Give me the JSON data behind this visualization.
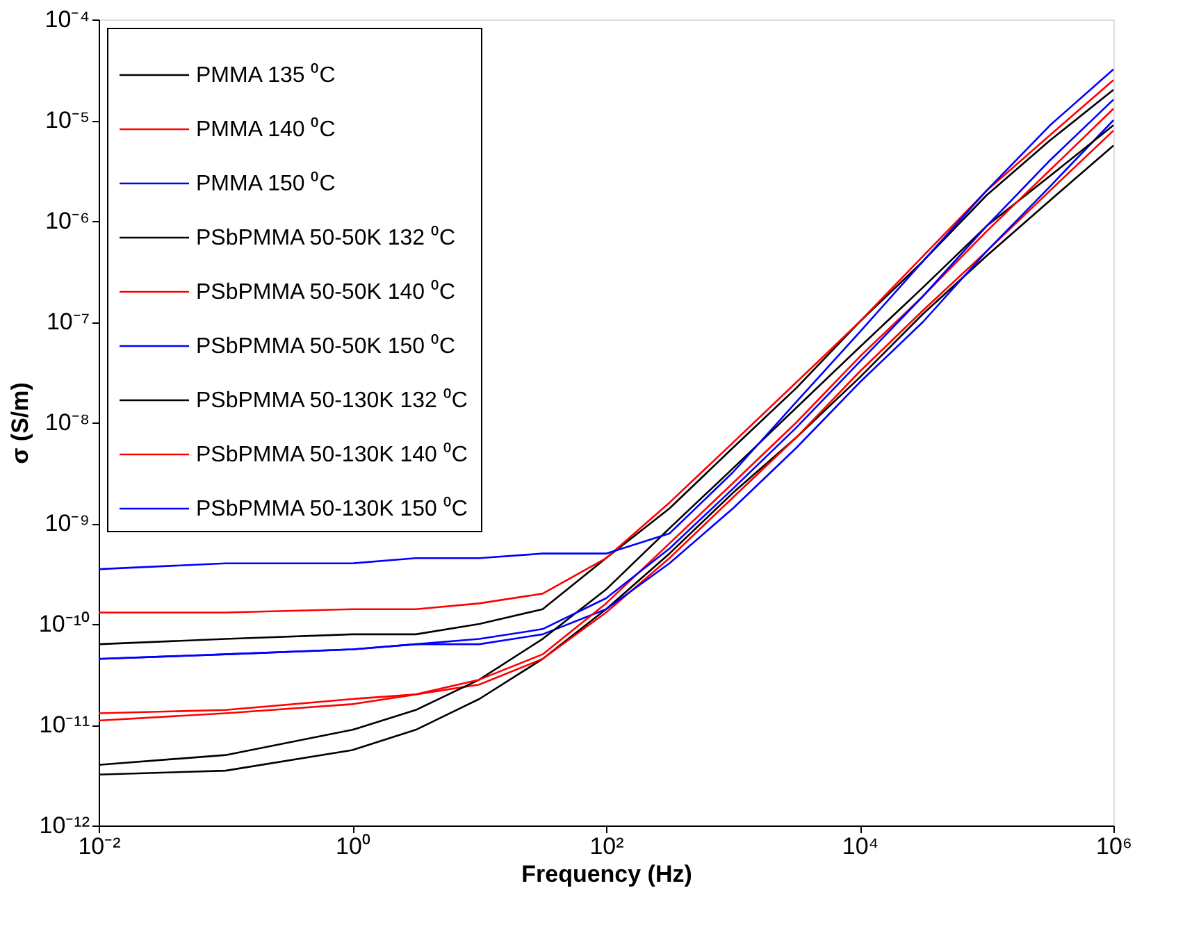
{
  "chart_data": {
    "type": "line",
    "xlabel": "Frequency (Hz)",
    "ylabel": "σ (S/m)",
    "x": [
      0.01,
      0.1,
      1,
      3.16,
      10,
      31.6,
      100,
      316,
      1000,
      3162,
      10000,
      31623,
      100000,
      316228,
      1000000
    ],
    "series": [
      {
        "name": "PMMA 135 ⁰C",
        "color": "#000000",
        "values": [
          3.2e-12,
          3.5e-12,
          5.6e-12,
          8.9e-12,
          1.8e-11,
          4.5e-11,
          1.4e-10,
          5e-10,
          2e-09,
          7.1e-09,
          2.8e-08,
          1.2e-07,
          4.5e-07,
          1.6e-06,
          5.6e-06
        ]
      },
      {
        "name": "PMMA 140 ⁰C",
        "color": "#ff0000",
        "values": [
          1.1e-11,
          1.3e-11,
          1.6e-11,
          2e-11,
          2.5e-11,
          4.5e-11,
          1.3e-10,
          4.5e-10,
          1.8e-09,
          7.1e-09,
          3.2e-08,
          1.3e-07,
          5e-07,
          2e-06,
          7.9e-06
        ]
      },
      {
        "name": "PMMA 150 ⁰C",
        "color": "#0000ff",
        "values": [
          4.5e-11,
          5e-11,
          5.6e-11,
          6.3e-11,
          6.3e-11,
          7.9e-11,
          1.4e-10,
          4e-10,
          1.4e-09,
          5.6e-09,
          2.5e-08,
          1e-07,
          5e-07,
          2.2e-06,
          1e-05
        ]
      },
      {
        "name": "PSbPMMA 50-50K 132 ⁰C",
        "color": "#000000",
        "values": [
          4e-12,
          5e-12,
          8.9e-12,
          1.4e-11,
          2.8e-11,
          7.1e-11,
          2.2e-10,
          8.9e-10,
          3.5e-09,
          1.4e-08,
          5.6e-08,
          2.2e-07,
          8.9e-07,
          2.8e-06,
          8.9e-06
        ]
      },
      {
        "name": "PSbPMMA 50-50K 140 ⁰C",
        "color": "#ff0000",
        "values": [
          1.3e-11,
          1.4e-11,
          1.8e-11,
          2e-11,
          2.8e-11,
          5e-11,
          1.6e-10,
          6.3e-10,
          2.5e-09,
          1e-08,
          4.5e-08,
          1.8e-07,
          7.9e-07,
          3.2e-06,
          1.3e-05
        ]
      },
      {
        "name": "PSbPMMA 50-50K 150 ⁰C",
        "color": "#0000ff",
        "values": [
          4.5e-11,
          5e-11,
          5.6e-11,
          6.3e-11,
          7.1e-11,
          8.9e-11,
          1.8e-10,
          5.6e-10,
          2.2e-09,
          8.9e-09,
          4e-08,
          1.8e-07,
          8.9e-07,
          4e-06,
          1.6e-05
        ]
      },
      {
        "name": "PSbPMMA 50-130K 132 ⁰C",
        "color": "#000000",
        "values": [
          6.3e-11,
          7.1e-11,
          7.9e-11,
          7.9e-11,
          1e-10,
          1.4e-10,
          4.5e-10,
          1.4e-09,
          5.6e-09,
          2.2e-08,
          1e-07,
          4e-07,
          1.8e-06,
          6.3e-06,
          2e-05
        ]
      },
      {
        "name": "PSbPMMA 50-130K 140 ⁰C",
        "color": "#ff0000",
        "values": [
          1.3e-10,
          1.3e-10,
          1.4e-10,
          1.4e-10,
          1.6e-10,
          2e-10,
          4.5e-10,
          1.6e-09,
          6.3e-09,
          2.5e-08,
          1e-07,
          4.5e-07,
          2e-06,
          7.1e-06,
          2.5e-05
        ]
      },
      {
        "name": "PSbPMMA 50-130K 150 ⁰C",
        "color": "#0000ff",
        "values": [
          3.5e-10,
          4e-10,
          4e-10,
          4.5e-10,
          4.5e-10,
          5e-10,
          5e-10,
          7.9e-10,
          3.2e-09,
          1.6e-08,
          7.9e-08,
          4e-07,
          2e-06,
          8.9e-06,
          3.2e-05
        ]
      }
    ],
    "log": "xy",
    "xlim": [
      0.01,
      1000000
    ],
    "ylim": [
      1e-12,
      0.0001
    ],
    "xticks": [
      {
        "value": 0.01,
        "label": "10⁻²"
      },
      {
        "value": 1,
        "label": "10⁰"
      },
      {
        "value": 100,
        "label": "10²"
      },
      {
        "value": 10000,
        "label": "10⁴"
      },
      {
        "value": 1000000,
        "label": "10⁶"
      }
    ],
    "yticks": [
      {
        "value": 1e-12,
        "label": "10⁻¹²"
      },
      {
        "value": 1e-11,
        "label": "10⁻¹¹"
      },
      {
        "value": 1e-10,
        "label": "10⁻¹⁰"
      },
      {
        "value": 1e-09,
        "label": "10⁻⁹"
      },
      {
        "value": 1e-08,
        "label": "10⁻⁸"
      },
      {
        "value": 1e-07,
        "label": "10⁻⁷"
      },
      {
        "value": 1e-06,
        "label": "10⁻⁶"
      },
      {
        "value": 1e-05,
        "label": "10⁻⁵"
      },
      {
        "value": 0.0001,
        "label": "10⁻⁴"
      }
    ],
    "grid": false,
    "legend": "top left",
    "marker": "none",
    "line_style": "solid"
  }
}
